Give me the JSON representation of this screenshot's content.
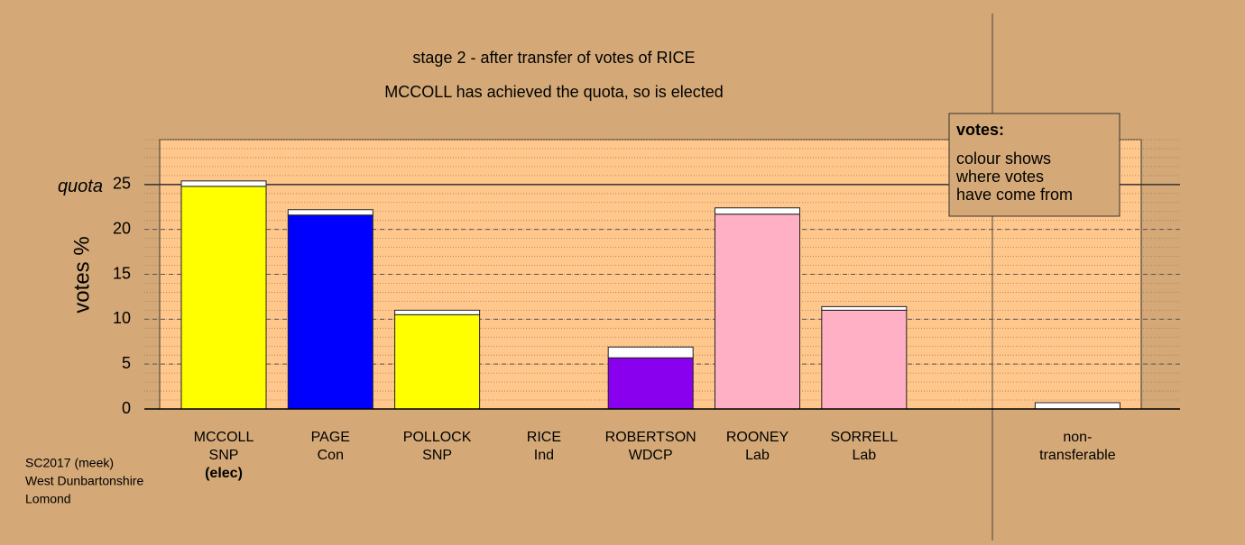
{
  "chart_data": {
    "type": "stacked-bar",
    "title": "stage 2 - after transfer of votes of RICE",
    "subtitle": "MCCOLL has achieved the quota, so is elected",
    "ylabel": "votes %",
    "categories": [
      {
        "lines": [
          "MCCOLL",
          "SNP"
        ],
        "status": "(elec)"
      },
      {
        "lines": [
          "PAGE",
          "Con"
        ]
      },
      {
        "lines": [
          "POLLOCK",
          "SNP"
        ]
      },
      {
        "lines": [
          "RICE",
          "Ind"
        ]
      },
      {
        "lines": [
          "ROBERTSON",
          "WDCP"
        ]
      },
      {
        "lines": [
          "ROONEY",
          "Lab"
        ]
      },
      {
        "lines": [
          "SORRELL",
          "Lab"
        ]
      },
      {
        "lines": [
          "non-",
          "transferable"
        ]
      }
    ],
    "series": [
      {
        "colors": [
          "#ffff00",
          "#0000ff",
          "#ffff00",
          "#ffff00",
          "#8800ee",
          "#ffb0c4",
          "#ffb0c4",
          "#ffffff"
        ],
        "values": [
          24.8,
          21.6,
          10.5,
          0,
          5.7,
          21.7,
          11.0,
          null
        ]
      },
      {
        "color": "#ffffff",
        "values": [
          0.6,
          0.6,
          0.5,
          0,
          1.2,
          0.7,
          0.4,
          0.7
        ]
      }
    ],
    "quota": {
      "label": "quota",
      "value": 25
    },
    "ylim": [
      0,
      30
    ],
    "yticks": [
      0,
      5,
      10,
      15,
      20,
      25
    ],
    "minor_grid_step": 1,
    "grid": true,
    "note": {
      "title": "votes:",
      "lines": [
        "colour shows",
        "where votes",
        "have come from"
      ]
    },
    "footer": [
      "SC2017 (meek)",
      "West Dunbartonshire",
      "Lomond"
    ]
  }
}
